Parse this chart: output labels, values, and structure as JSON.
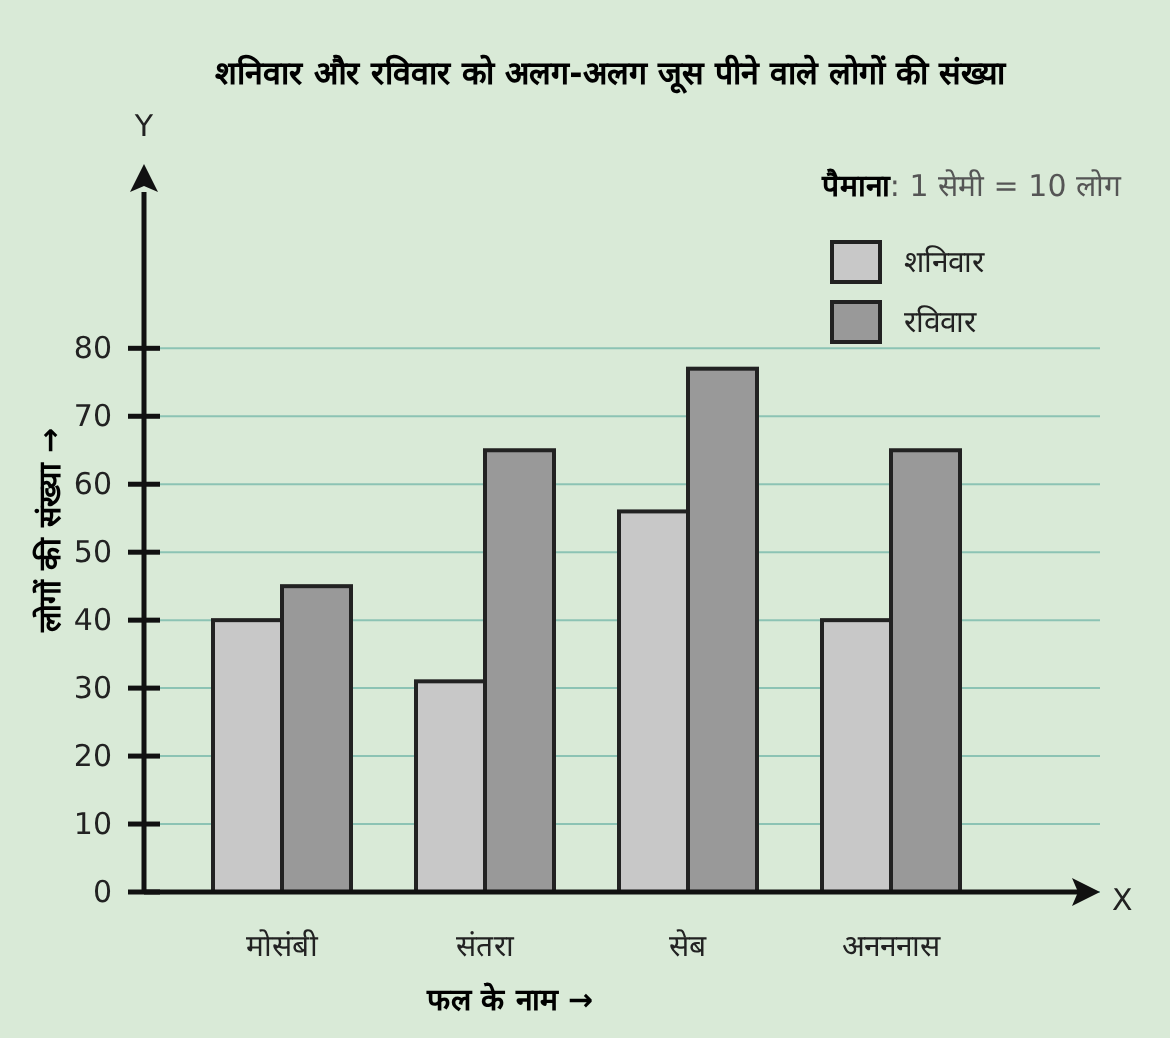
{
  "chart_data": {
    "type": "bar",
    "title": "शनिवार और रविवार को अलग-अलग जूस पीने वाले लोगों की संख्या",
    "categories": [
      "मोसंबी",
      "संतरा",
      "सेब",
      "अनननास"
    ],
    "series": [
      {
        "name": "शनिवार",
        "color": "#c8c8c8",
        "values": [
          40,
          31,
          56,
          40
        ]
      },
      {
        "name": "रविवार",
        "color": "#999999",
        "values": [
          45,
          65,
          77,
          65
        ]
      }
    ],
    "xlabel": "फल के नाम →",
    "ylabel": "लोगों की संख्या →",
    "annotations": [
      "**पैमाना**: 1 सेमी = 10 लोग",
      "X",
      "Y"
    ],
    "ylim": [
      0,
      103
    ],
    "yticks": [
      0,
      10,
      20,
      30,
      40,
      50,
      60,
      70,
      80
    ],
    "grid": "y",
    "legend": "top right"
  }
}
